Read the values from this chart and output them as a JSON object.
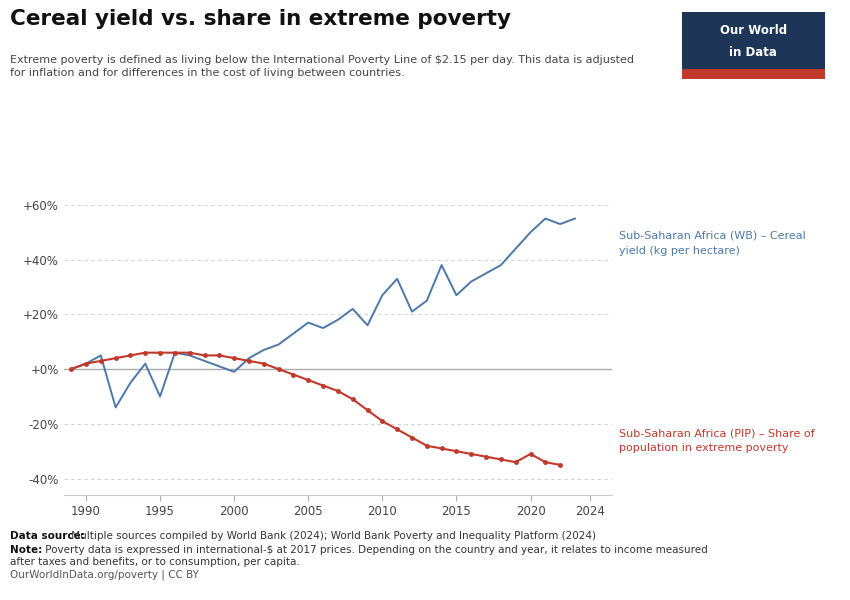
{
  "title": "Cereal yield vs. share in extreme poverty",
  "subtitle1": "Extreme poverty is defined as living below the International Poverty Line of $2.15 per day. This data is adjusted",
  "subtitle2": "for inflation and for differences in the cost of living between countries.",
  "datasource_bold": "Data source:",
  "datasource_rest": " Multiple sources compiled by World Bank (2024); World Bank Poverty and Inequality Platform (2024)",
  "note_bold": "Note:",
  "note_rest": " Poverty data is expressed in international-$ at 2017 prices. Depending on the country and year, it relates to income measured",
  "note2": "after taxes and benefits, or to consumption, per capita.",
  "url": "OurWorldInData.org/poverty | CC BY",
  "cereal_label1": "Sub-Saharan Africa (WB) – Cereal",
  "cereal_label2": "yield (kg per hectare)",
  "poverty_label1": "Sub-Saharan Africa (PIP) – Share of",
  "poverty_label2": "population in extreme poverty",
  "cereal_color": "#4c78a8",
  "poverty_color": "#c0392b",
  "background_color": "#ffffff",
  "grid_color": "#c8c8c8",
  "zero_line_color": "#aaaaaa",
  "ylim": [
    -46,
    68
  ],
  "yticks": [
    -40,
    -20,
    0,
    20,
    40,
    60
  ],
  "ytick_labels": [
    "-40%",
    "-20%",
    "+0%",
    "+20%",
    "+40%",
    "+60%"
  ],
  "cereal_years": [
    1989,
    1990,
    1991,
    1992,
    1993,
    1994,
    1995,
    1996,
    1997,
    1998,
    1999,
    2000,
    2001,
    2002,
    2003,
    2004,
    2005,
    2006,
    2007,
    2008,
    2009,
    2010,
    2011,
    2012,
    2013,
    2014,
    2015,
    2016,
    2017,
    2018,
    2019,
    2020,
    2021,
    2022,
    2023
  ],
  "cereal_values": [
    0,
    2,
    5,
    -14,
    -5,
    2,
    -10,
    6,
    5,
    3,
    1,
    -1,
    4,
    7,
    9,
    13,
    17,
    15,
    18,
    22,
    16,
    27,
    33,
    21,
    25,
    38,
    27,
    32,
    35,
    38,
    44,
    50,
    55,
    53,
    55
  ],
  "poverty_years": [
    1989,
    1990,
    1991,
    1992,
    1993,
    1994,
    1995,
    1996,
    1997,
    1998,
    1999,
    2000,
    2001,
    2002,
    2003,
    2004,
    2005,
    2006,
    2007,
    2008,
    2009,
    2010,
    2011,
    2012,
    2013,
    2014,
    2015,
    2016,
    2017,
    2018,
    2019,
    2020,
    2021,
    2022
  ],
  "poverty_values": [
    0,
    2,
    3,
    4,
    5,
    6,
    6,
    6,
    6,
    5,
    5,
    4,
    3,
    2,
    0,
    -2,
    -4,
    -6,
    -8,
    -11,
    -15,
    -19,
    -22,
    -25,
    -28,
    -29,
    -30,
    -31,
    -32,
    -33,
    -34,
    -31,
    -34,
    -35
  ],
  "logo_bg": "#1d3557",
  "logo_bar_color": "#c0392b",
  "xlim_left": 1988.5,
  "xlim_right": 2025.5,
  "xticks": [
    1990,
    1995,
    2000,
    2005,
    2010,
    2015,
    2020,
    2024
  ]
}
